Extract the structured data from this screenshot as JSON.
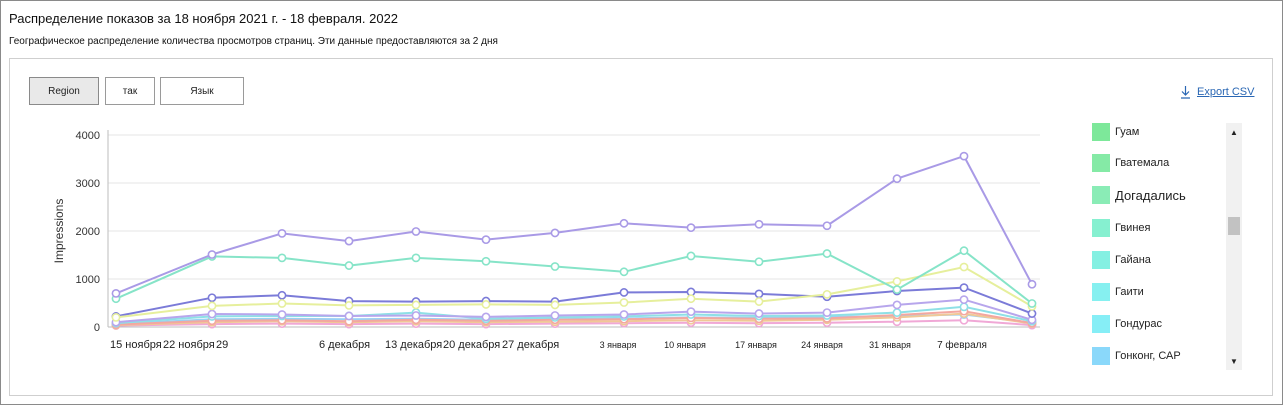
{
  "header": {
    "title": "Распределение показов за 18 ноября 2021 г. - 18 февраля. 2022",
    "subtitle": "Географическое распределение количества просмотров страниц. Эти данные предоставляются за 2 дня"
  },
  "tabs": [
    {
      "label": "Region",
      "active": true
    },
    {
      "label": "так",
      "active": false
    },
    {
      "label": "Язык",
      "active": false
    }
  ],
  "export_label": "Export CSV",
  "icons": {
    "export": "download-icon",
    "scroll_up": "chevron-up-icon",
    "scroll_down": "chevron-down-icon"
  },
  "legend": [
    {
      "label": "Гуам",
      "color": "#7de89a"
    },
    {
      "label": "Гватемала",
      "color": "#85eaa6"
    },
    {
      "label": "Догадались",
      "color": "#8aecb6"
    },
    {
      "label": "Гвинея",
      "color": "#86f0d0"
    },
    {
      "label": "Гайана",
      "color": "#84f0e2"
    },
    {
      "label": "Гаити",
      "color": "#86f0f0"
    },
    {
      "label": "Гондурас",
      "color": "#86eef6"
    },
    {
      "label": "Гонконг, САР",
      "color": "#8ad8fa"
    }
  ],
  "chart_data": {
    "type": "line",
    "ylabel": "Impressions",
    "ylim": [
      0,
      4000
    ],
    "yticks": [
      0,
      1000,
      2000,
      3000,
      4000
    ],
    "x_tick_labels": [
      "15 ноября",
      "22 ноября",
      "29",
      "6 декабря",
      "13 декабря",
      "20 декабря",
      "27 декабря",
      "3 января",
      "10 января",
      "17 января",
      "24 января",
      "31 января",
      "7 февраля"
    ],
    "points_count": 14,
    "series": [
      {
        "color": "#a99ae6",
        "values": [
          700,
          1510,
          1950,
          1790,
          1990,
          1820,
          1960,
          2160,
          2070,
          2140,
          2110,
          3090,
          3560,
          890
        ]
      },
      {
        "color": "#86e4c8",
        "values": [
          590,
          1470,
          1440,
          1280,
          1440,
          1370,
          1260,
          1150,
          1480,
          1360,
          1530,
          780,
          1590,
          490
        ]
      },
      {
        "color": "#e6ef9c",
        "values": [
          200,
          440,
          490,
          450,
          460,
          470,
          460,
          510,
          590,
          530,
          680,
          950,
          1250,
          430
        ]
      },
      {
        "color": "#7b7bd8",
        "values": [
          220,
          610,
          660,
          540,
          530,
          540,
          530,
          720,
          730,
          690,
          630,
          750,
          820,
          280
        ]
      },
      {
        "color": "#b7a6ec",
        "values": [
          100,
          270,
          260,
          230,
          240,
          210,
          240,
          260,
          320,
          280,
          300,
          460,
          570,
          150
        ]
      },
      {
        "color": "#8ee0e6",
        "values": [
          80,
          220,
          230,
          230,
          300,
          170,
          200,
          220,
          260,
          230,
          240,
          300,
          420,
          120
        ]
      },
      {
        "color": "#f3a7a0",
        "values": [
          50,
          130,
          140,
          120,
          150,
          130,
          150,
          160,
          190,
          170,
          180,
          250,
          330,
          80
        ]
      },
      {
        "color": "#f0c896",
        "values": [
          40,
          100,
          120,
          100,
          120,
          100,
          110,
          120,
          140,
          130,
          150,
          200,
          280,
          70
        ]
      },
      {
        "color": "#9ad0f4",
        "values": [
          60,
          160,
          170,
          160,
          170,
          150,
          160,
          180,
          200,
          190,
          210,
          230,
          260,
          90
        ]
      },
      {
        "color": "#f0a8d6",
        "values": [
          30,
          60,
          70,
          60,
          70,
          60,
          70,
          80,
          90,
          80,
          90,
          110,
          140,
          40
        ]
      }
    ]
  }
}
